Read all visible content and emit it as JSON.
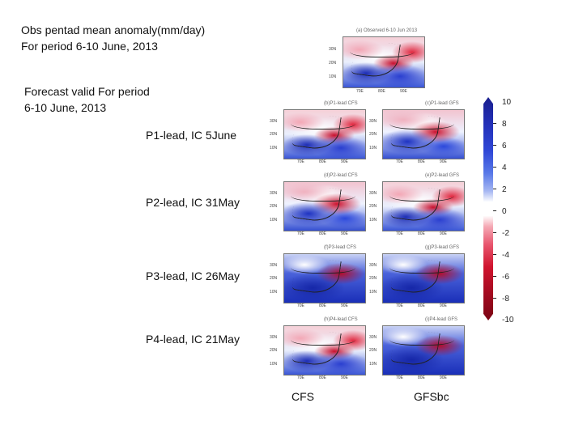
{
  "header": {
    "obs_line1": "Obs pentad mean anomaly(mm/day)",
    "obs_line2": "For period 6-10 June, 2013"
  },
  "forecast": {
    "line1": "Forecast valid For period",
    "line2": "6-10 June, 2013"
  },
  "row_labels": [
    "P1-lead, IC 5June",
    "P2-lead, IC 31May",
    "P3-lead, IC 26May",
    "P4-lead, IC 21May"
  ],
  "column_labels": [
    "CFS",
    "GFSbc"
  ],
  "obs_panel_title": "(a) Observed 6-10 Jun 2013",
  "panel_titles": [
    [
      "(b)P1-lead CFS",
      "(c)P1-lead GFS"
    ],
    [
      "(d)P2-lead CFS",
      "(e)P2-lead GFS"
    ],
    [
      "(f)P3-lead CFS",
      "(g)P3-lead GFS"
    ],
    [
      "(h)P4-lead CFS",
      "(i)P4-lead GFS"
    ]
  ],
  "lat_ticks": [
    "30N",
    "20N",
    "10N"
  ],
  "lon_ticks": [
    "70E",
    "80E",
    "90E"
  ],
  "colorbar": {
    "labels": [
      "10",
      "8",
      "6",
      "4",
      "2",
      "0",
      "-2",
      "-4",
      "-6",
      "-8",
      "-10"
    ],
    "colors": {
      "max": "#1a1f8e",
      "zero": "#ffffff",
      "min": "#7a0414"
    }
  }
}
